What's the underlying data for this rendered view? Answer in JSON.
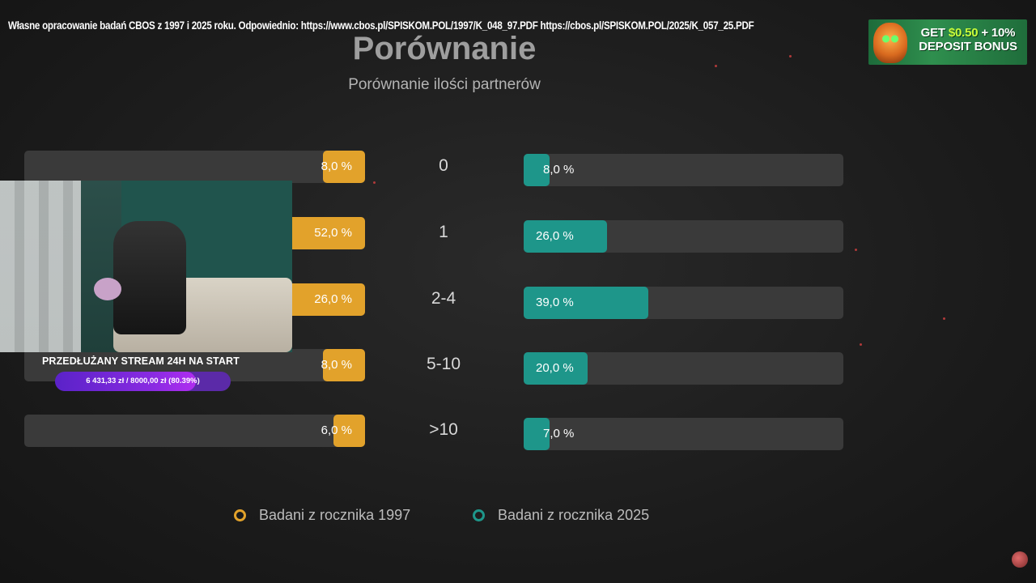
{
  "source_note": "Własne opracowanie badań CBOS z 1997 i 2025 roku. Odpowiednio: https://www.cbos.pl/SPISKOM.POL/1997/K_048_97.PDF https://cbos.pl/SPISKOM.POL/2025/K_057_25.PDF",
  "ad": {
    "line1_prefix": "GET ",
    "line1_accent": "$0.50",
    "line1_suffix": " + 10%",
    "line2": "DEPOSIT BONUS"
  },
  "stream": {
    "banner": "PRZEDŁUŻANY STREAM 24H NA START",
    "progress_text": "6 431,33 zł / 8000,00 zł (80.39%)",
    "progress_fraction": 0.8039
  },
  "chart_data": {
    "type": "bar",
    "title": "Porównanie",
    "subtitle": "Porównanie ilości partnerów",
    "categories": [
      "0",
      "1",
      "2-4",
      "5-10",
      ">10"
    ],
    "series": [
      {
        "name": "Badani z rocznika 1997",
        "values": [
          8.0,
          52.0,
          26.0,
          8.0,
          6.0
        ],
        "labels": [
          "8,0 %",
          "52,0 %",
          "26,0 %",
          "8,0 %",
          "6,0 %"
        ],
        "color": "#e2a22b"
      },
      {
        "name": "Badani z rocznika 2025",
        "values": [
          8.0,
          26.0,
          39.0,
          20.0,
          7.0
        ],
        "labels": [
          "8,0 %",
          "26,0 %",
          "39,0 %",
          "20,0 %",
          "7,0 %"
        ],
        "color": "#1e968a"
      }
    ],
    "xlim": [
      0,
      100
    ],
    "legend": "bottom"
  }
}
